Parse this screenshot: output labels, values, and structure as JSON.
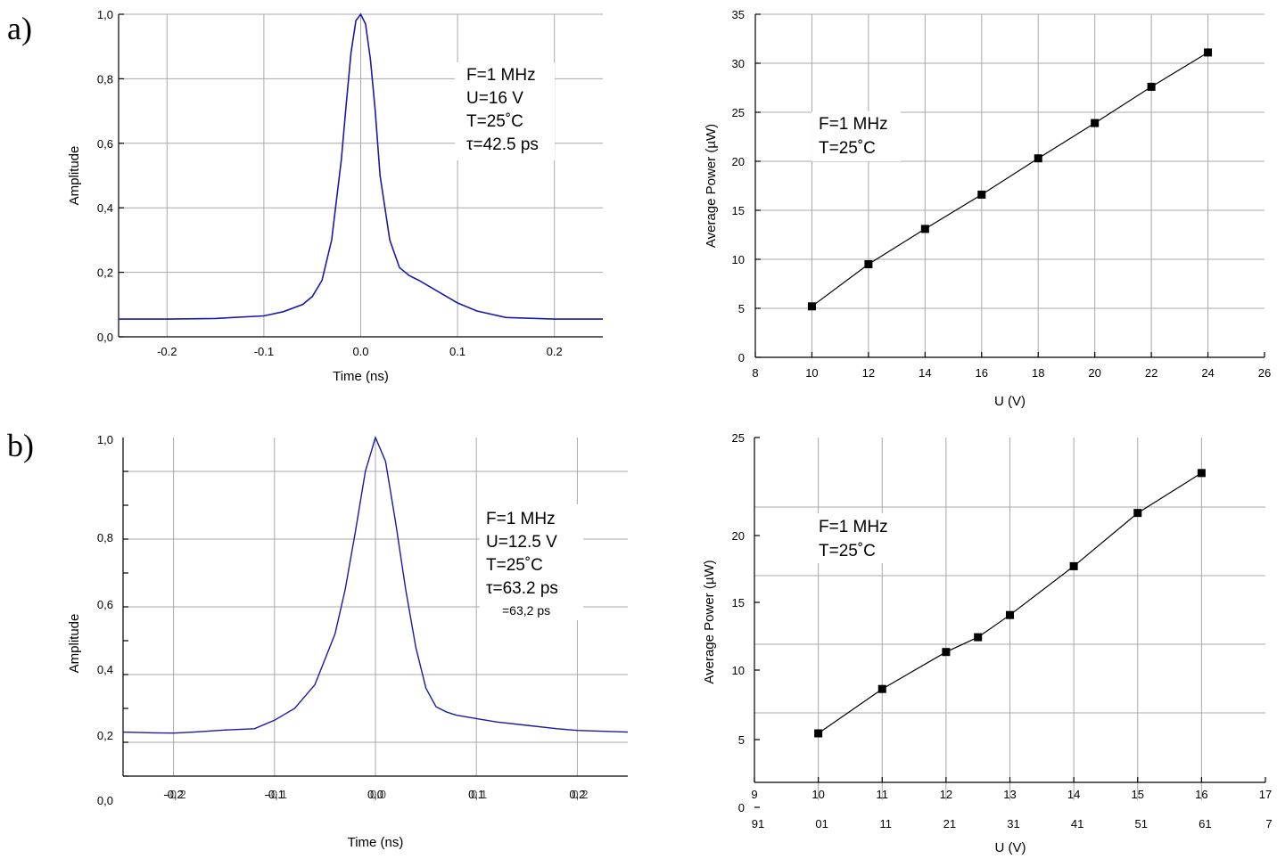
{
  "panels": [
    {
      "label": "a)"
    },
    {
      "label": "b)"
    }
  ],
  "chart_data": [
    {
      "type": "line",
      "panel": "a)",
      "xlabel": "Time (ns)",
      "ylabel": "Amplitude",
      "xlim": [
        -0.25,
        0.25
      ],
      "ylim": [
        0,
        1.0
      ],
      "xticks": [
        -0.2,
        -0.1,
        0.0,
        0.1,
        0.2
      ],
      "xtick_labels": [
        "-0.2",
        "-0.1",
        "0.0",
        "0.1",
        "0.2"
      ],
      "yticks": [
        0,
        0.2,
        0.4,
        0.6,
        0.8,
        1.0
      ],
      "ytick_labels": [
        "0,0",
        "0,2",
        "0,4",
        "0,6",
        "0,8",
        "1,0"
      ],
      "grid": true,
      "line_color": "#1a1aa6",
      "annotations": [
        "F=1 MHz",
        "U=16 V",
        "T=25˚C",
        "τ=42.5 ps"
      ],
      "series": [
        {
          "x": [
            -0.25,
            -0.2,
            -0.15,
            -0.1,
            -0.08,
            -0.06,
            -0.05,
            -0.04,
            -0.03,
            -0.02,
            -0.015,
            -0.01,
            -0.005,
            0,
            0.005,
            0.01,
            0.015,
            0.02,
            0.03,
            0.04,
            0.05,
            0.06,
            0.08,
            0.1,
            0.12,
            0.15,
            0.2,
            0.25
          ],
          "y": [
            0.055,
            0.055,
            0.057,
            0.065,
            0.078,
            0.1,
            0.125,
            0.175,
            0.3,
            0.55,
            0.72,
            0.88,
            0.98,
            1.0,
            0.97,
            0.86,
            0.7,
            0.5,
            0.3,
            0.215,
            0.19,
            0.175,
            0.14,
            0.105,
            0.08,
            0.06,
            0.055,
            0.055
          ]
        }
      ]
    },
    {
      "type": "line",
      "panel": "a)",
      "xlabel": "U (V)",
      "ylabel": "Average Power (µW)",
      "xlim": [
        8,
        26
      ],
      "ylim": [
        0,
        35
      ],
      "xticks": [
        8,
        10,
        12,
        14,
        16,
        18,
        20,
        22,
        24,
        26
      ],
      "yticks": [
        0,
        5,
        10,
        15,
        20,
        25,
        30,
        35
      ],
      "grid": true,
      "marker": "square",
      "annotations": [
        "F=1 MHz",
        "T=25˚C"
      ],
      "series": [
        {
          "x": [
            10,
            12,
            14,
            16,
            18,
            20,
            22,
            24
          ],
          "y": [
            5.2,
            9.5,
            13.1,
            16.6,
            20.3,
            23.9,
            27.6,
            31.1
          ]
        }
      ]
    },
    {
      "type": "line",
      "panel": "b)",
      "xlabel": "Time (ns)",
      "ylabel": "Amplitude",
      "xlim": [
        -0.25,
        0.25
      ],
      "ylim": [
        0,
        1.0
      ],
      "xticks": [
        -0.2,
        -0.1,
        0.0,
        0.1,
        0.2
      ],
      "xtick_labels": [
        "-0,2",
        "-0,1",
        "0,0",
        "0,1",
        "0,2"
      ],
      "xtick_labels_ghost": [
        "-0.2",
        "-0.1",
        "0.0",
        "0.1",
        "0.2"
      ],
      "yticks": [
        0,
        0.2,
        0.4,
        0.6,
        0.8,
        1.0
      ],
      "ytick_labels": [
        "0,0",
        "0,2",
        "0,4",
        "0,6",
        "0,8",
        "1,0"
      ],
      "grid": true,
      "line_color": "#1a1aa6",
      "annotations": [
        "F=1  MHz",
        "U=12.5 V",
        "T=25˚C",
        "τ=63.2 ps"
      ],
      "annotation_extra": "=63,2 ps",
      "series": [
        {
          "x": [
            -0.25,
            -0.22,
            -0.2,
            -0.18,
            -0.15,
            -0.12,
            -0.1,
            -0.08,
            -0.06,
            -0.04,
            -0.03,
            -0.02,
            -0.01,
            0,
            0.01,
            0.02,
            0.03,
            0.04,
            0.05,
            0.06,
            0.07,
            0.08,
            0.1,
            0.12,
            0.15,
            0.18,
            0.2,
            0.25
          ],
          "y": [
            0.13,
            0.128,
            0.127,
            0.13,
            0.136,
            0.14,
            0.165,
            0.2,
            0.27,
            0.42,
            0.55,
            0.72,
            0.9,
            1.0,
            0.93,
            0.75,
            0.55,
            0.38,
            0.26,
            0.205,
            0.19,
            0.18,
            0.17,
            0.16,
            0.15,
            0.14,
            0.135,
            0.13
          ]
        }
      ]
    },
    {
      "type": "line",
      "panel": "b)",
      "xlabel": "U (V)",
      "ylabel": "Average Power (µW)",
      "xlim": [
        9,
        17
      ],
      "ylim": [
        0,
        25
      ],
      "xticks": [
        9,
        10,
        11,
        12,
        13,
        14,
        15,
        16,
        17
      ],
      "xtick_labels_mirrored": [
        "91",
        "01",
        "11",
        "21",
        "31",
        "41",
        "51",
        "61",
        "7"
      ],
      "yticks": [
        0,
        5,
        10,
        15,
        20,
        25
      ],
      "grid": true,
      "marker": "square",
      "annotations": [
        "F=1 MHz",
        "T=25˚C"
      ],
      "series": [
        {
          "x": [
            10,
            11,
            12,
            12.5,
            13,
            14,
            15,
            16
          ],
          "y": [
            5.0,
            8.0,
            10.5,
            11.5,
            13.0,
            16.3,
            19.9,
            22.6
          ]
        }
      ]
    }
  ]
}
